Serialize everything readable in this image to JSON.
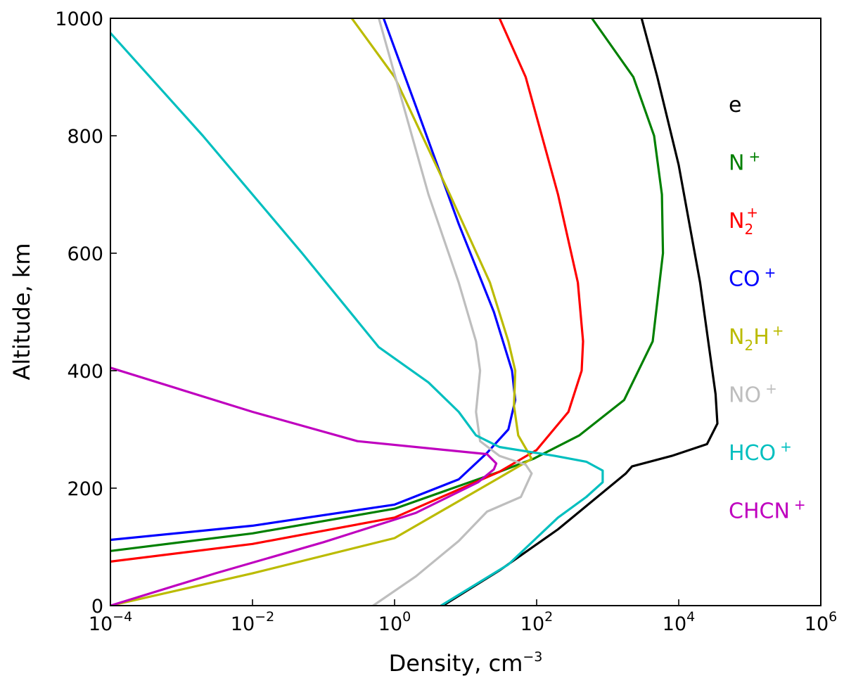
{
  "chart_data": {
    "type": "line",
    "title": "",
    "xlabel": "Density, cm",
    "xlabel_exponent": "−3",
    "ylabel": "Altitude, km",
    "xscale": "log",
    "xlim": [
      0.0001,
      1000000
    ],
    "ylim": [
      0,
      1000
    ],
    "grid": false,
    "legend_placement": "right inside",
    "x_ticks": [
      {
        "base": "10",
        "exp": "−4",
        "value": 0.0001
      },
      {
        "base": "10",
        "exp": "−2",
        "value": 0.01
      },
      {
        "base": "10",
        "exp": "0",
        "value": 1
      },
      {
        "base": "10",
        "exp": "2",
        "value": 100
      },
      {
        "base": "10",
        "exp": "4",
        "value": 10000
      },
      {
        "base": "10",
        "exp": "6",
        "value": 1000000
      }
    ],
    "y_ticks": [
      "0",
      "200",
      "400",
      "600",
      "800",
      "1000"
    ],
    "series": [
      {
        "name": "e",
        "label_main": "e",
        "label_sub": "",
        "label_rest": "",
        "label_sup": "",
        "color": "#000000",
        "x": [
          4.8,
          30,
          200,
          1800,
          2200,
          8000,
          25000,
          35000,
          33000,
          20000,
          10000,
          5000,
          3000
        ],
        "y": [
          0,
          60,
          130,
          225,
          237,
          255,
          275,
          310,
          360,
          550,
          750,
          900,
          1000
        ]
      },
      {
        "name": "N+",
        "label_main": "N",
        "label_sub": "",
        "label_rest": "",
        "label_sup": "+",
        "color": "#008000",
        "x": [
          0.0001,
          0.01,
          1,
          30,
          90,
          400,
          1700,
          4300,
          6000,
          5800,
          4500,
          2300,
          600
        ],
        "y": [
          93,
          123,
          165,
          228,
          250,
          290,
          350,
          450,
          600,
          700,
          800,
          900,
          1000
        ]
      },
      {
        "name": "N2+",
        "label_main": "N",
        "label_sub": "2",
        "label_rest": "",
        "label_sup": "+",
        "color": "#ff0000",
        "x": [
          0.0001,
          0.01,
          1,
          30,
          100,
          280,
          430,
          450,
          380,
          200,
          70,
          30
        ],
        "y": [
          75,
          105,
          150,
          228,
          265,
          330,
          400,
          450,
          550,
          700,
          900,
          1000
        ]
      },
      {
        "name": "CO+",
        "label_main": "CO",
        "label_sub": "",
        "label_rest": "",
        "label_sup": "+",
        "color": "#0000ff",
        "x": [
          0.0001,
          0.01,
          1,
          8,
          20,
          40,
          50,
          45,
          25,
          8,
          2,
          0.7
        ],
        "y": [
          112,
          136,
          172,
          215,
          260,
          300,
          350,
          400,
          500,
          650,
          850,
          1000
        ]
      },
      {
        "name": "N2H+",
        "label_main": "N",
        "label_sub": "2",
        "label_rest": "H",
        "label_sup": "+",
        "color": "#bbbb00",
        "x": [
          0.0001,
          0.01,
          1,
          30,
          85,
          70,
          55,
          48,
          50,
          40,
          22,
          6,
          1,
          0.25
        ],
        "y": [
          0,
          55,
          115,
          218,
          250,
          268,
          290,
          340,
          400,
          450,
          550,
          700,
          900,
          1000
        ]
      },
      {
        "name": "NO+",
        "label_main": "NO",
        "label_sub": "",
        "label_rest": "",
        "label_sup": "+",
        "color": "#bebebe",
        "x": [
          0.5,
          2,
          8,
          20,
          60,
          85,
          70,
          30,
          16,
          14,
          16,
          14,
          8,
          3,
          0.6
        ],
        "y": [
          0,
          50,
          110,
          160,
          185,
          225,
          240,
          255,
          280,
          330,
          400,
          450,
          550,
          700,
          1000
        ]
      },
      {
        "name": "HCO+",
        "label_main": "HCO",
        "label_sub": "",
        "label_rest": "",
        "label_sup": "+",
        "color": "#00bfbf",
        "x": [
          4.5,
          40,
          200,
          500,
          850,
          850,
          500,
          180,
          30,
          14,
          8,
          3,
          0.6,
          0.05,
          0.002,
          0.0001
        ],
        "y": [
          0,
          70,
          150,
          185,
          210,
          230,
          245,
          255,
          270,
          290,
          330,
          380,
          440,
          600,
          800,
          975
        ]
      },
      {
        "name": "CHCN+",
        "label_main": "CHCN",
        "label_sub": "",
        "label_rest": "",
        "label_sup": "+",
        "color": "#bf00bf",
        "x": [
          0.0001,
          0.003,
          0.1,
          2,
          15,
          25,
          27,
          20,
          0.3,
          0.01,
          0.0001
        ],
        "y": [
          0,
          55,
          108,
          158,
          210,
          232,
          242,
          258,
          280,
          330,
          405
        ]
      }
    ]
  }
}
